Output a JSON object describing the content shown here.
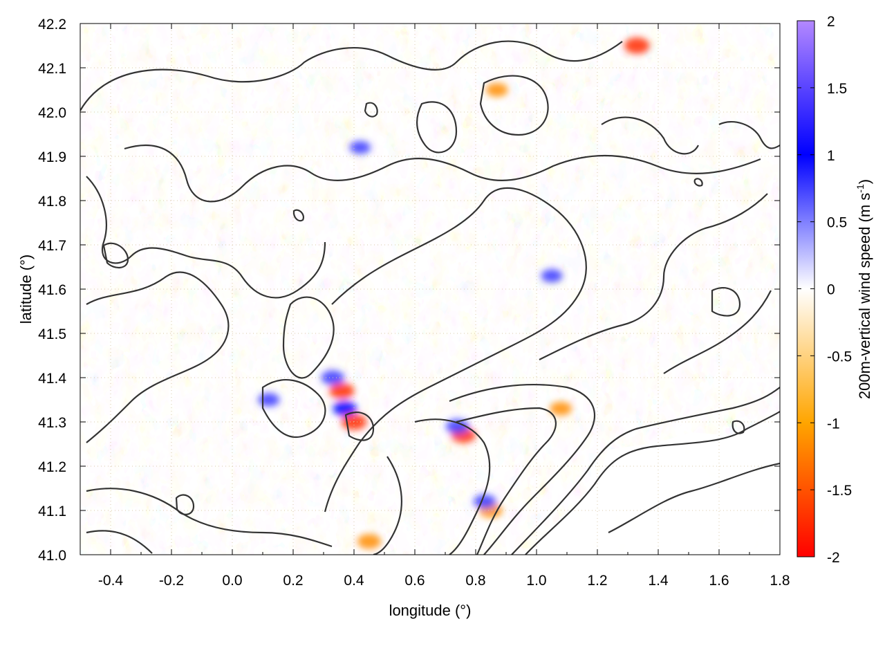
{
  "chart_data": {
    "type": "heatmap",
    "title": "",
    "xlabel": "longitude (°)",
    "ylabel": "latitude (°)",
    "colorbar_label": "200m-vertical wind speed (m s",
    "colorbar_label_sup": "-1",
    "colorbar_label_close": ")",
    "xlim": [
      -0.5,
      1.8
    ],
    "ylim": [
      41.0,
      42.2
    ],
    "xticks": [
      -0.4,
      -0.2,
      0.0,
      0.2,
      0.4,
      0.6,
      0.8,
      1.0,
      1.2,
      1.4,
      1.6,
      1.8
    ],
    "xtick_labels": [
      "-0.4",
      "-0.2",
      "0.0",
      "0.2",
      "0.4",
      "0.6",
      "0.8",
      "1.0",
      "1.2",
      "1.4",
      "1.6",
      "1.8"
    ],
    "yticks": [
      41.0,
      41.1,
      41.2,
      41.3,
      41.4,
      41.5,
      41.6,
      41.7,
      41.8,
      41.9,
      42.0,
      42.1,
      42.2
    ],
    "ytick_labels": [
      "41.0",
      "41.1",
      "41.2",
      "41.3",
      "41.4",
      "41.5",
      "41.6",
      "41.7",
      "41.8",
      "41.9",
      "42.0",
      "42.1",
      "42.2"
    ],
    "colorbar_range": [
      -2,
      2
    ],
    "colorbar_ticks": [
      2,
      1.5,
      1,
      0.5,
      0,
      -0.5,
      -1,
      -1.5,
      -2
    ],
    "colorbar_tick_labels": [
      "2",
      "1.5",
      "1",
      "0.5",
      "0",
      "-0.5",
      "-1",
      "-1.5",
      "-2"
    ],
    "colormap": [
      {
        "value": 2,
        "color": "#b388ff"
      },
      {
        "value": 1,
        "color": "#0000ff"
      },
      {
        "value": 0,
        "color": "#ffffff"
      },
      {
        "value": -1,
        "color": "#ffa500"
      },
      {
        "value": -2,
        "color": "#ff0000"
      }
    ],
    "grid": true,
    "contours": true,
    "hotspots": [
      {
        "lon": 0.33,
        "lat": 41.4,
        "value": 1.2
      },
      {
        "lon": 0.36,
        "lat": 41.37,
        "value": -1.5
      },
      {
        "lon": 0.37,
        "lat": 41.33,
        "value": 1.3
      },
      {
        "lon": 0.4,
        "lat": 41.3,
        "value": -1.6
      },
      {
        "lon": 0.76,
        "lat": 41.27,
        "value": -1.4
      },
      {
        "lon": 0.74,
        "lat": 41.29,
        "value": 1.2
      },
      {
        "lon": 0.85,
        "lat": 41.1,
        "value": -1.2
      },
      {
        "lon": 0.83,
        "lat": 41.12,
        "value": 1.1
      },
      {
        "lon": 0.45,
        "lat": 41.03,
        "value": -1.3
      },
      {
        "lon": 1.33,
        "lat": 42.15,
        "value": -1.6
      },
      {
        "lon": 0.87,
        "lat": 42.05,
        "value": -1.0
      },
      {
        "lon": 0.42,
        "lat": 41.92,
        "value": 0.8
      },
      {
        "lon": 0.12,
        "lat": 41.35,
        "value": 0.9
      },
      {
        "lon": 1.05,
        "lat": 41.63,
        "value": 0.9
      },
      {
        "lon": 1.08,
        "lat": 41.33,
        "value": -1.0
      }
    ]
  }
}
